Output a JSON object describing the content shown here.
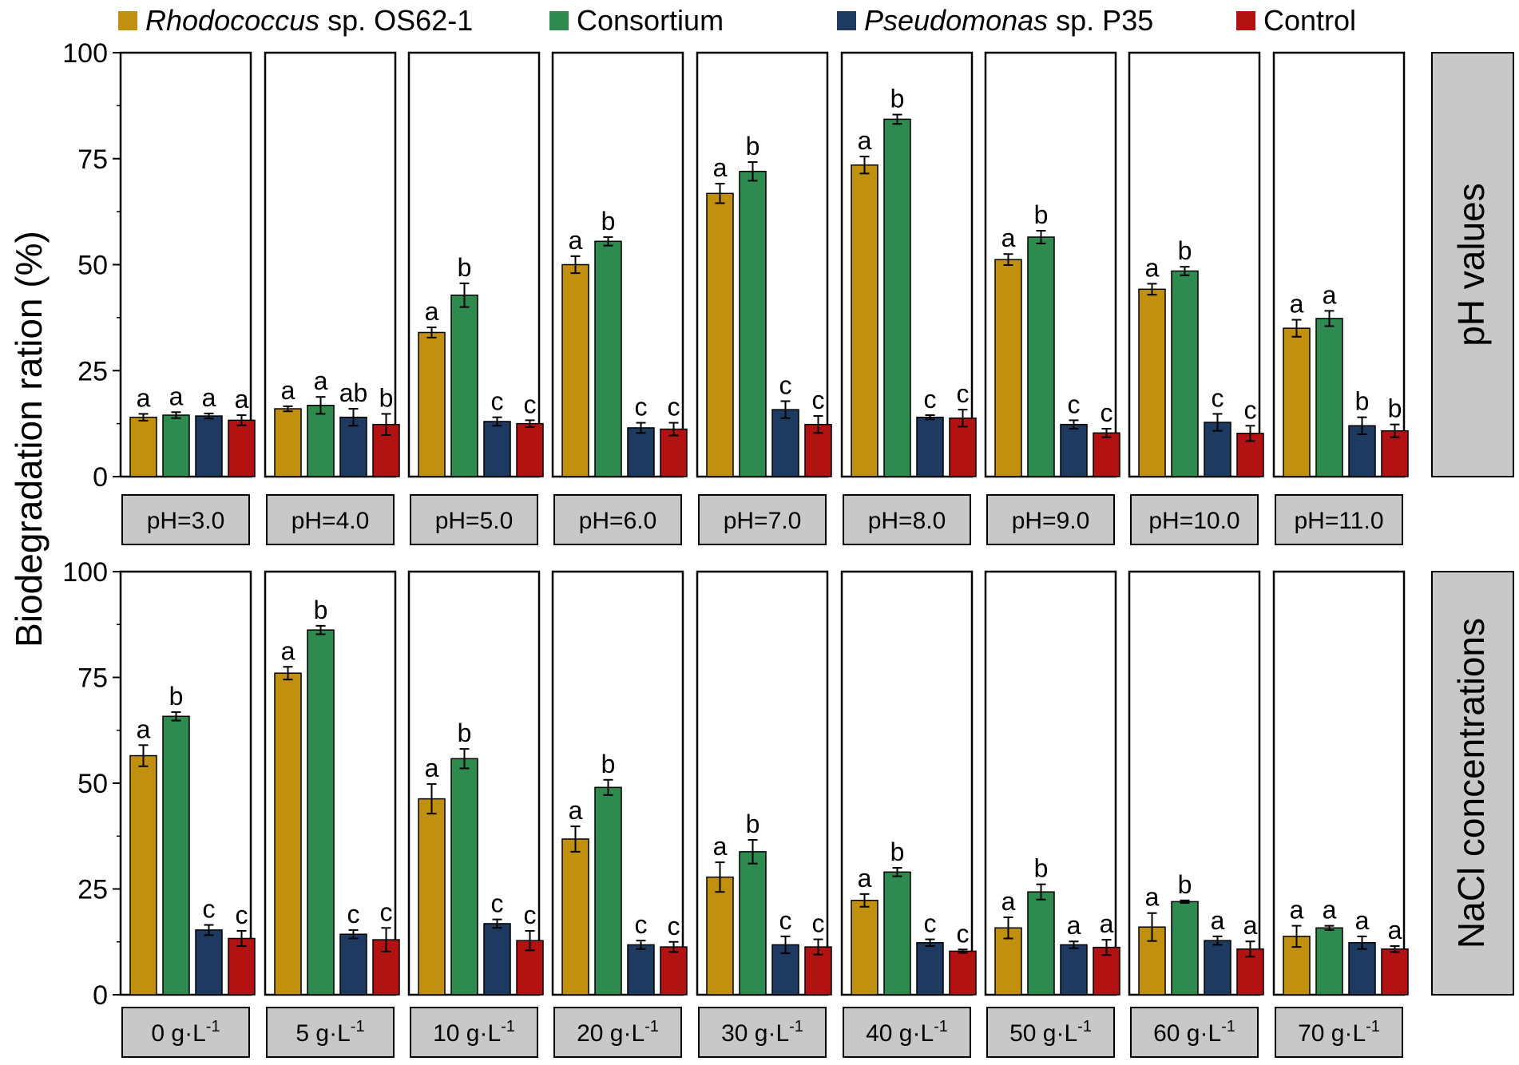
{
  "chart_data": {
    "type": "bar",
    "ylabel": "Biodegradation ration (%)",
    "ylim": [
      0,
      100
    ],
    "yticks": [
      0,
      25,
      50,
      75,
      100
    ],
    "legend": {
      "position": "top",
      "entries": [
        {
          "italic": "Rhodococcus",
          "rest": " sp. OS62-1",
          "color": "#C0900E"
        },
        {
          "italic": "",
          "rest": "Consortium",
          "color": "#2E8A4E"
        },
        {
          "italic": "Pseudomonas",
          "rest": " sp. P35",
          "color": "#1F3A60"
        },
        {
          "italic": "",
          "rest": "Control",
          "color": "#B31212"
        }
      ]
    },
    "series": [
      {
        "name": "Rhodococcus sp. OS62-1",
        "color": "#C0900E"
      },
      {
        "name": "Consortium",
        "color": "#2E8A4E"
      },
      {
        "name": "Pseudomonas sp. P35",
        "color": "#1F3A60"
      },
      {
        "name": "Control",
        "color": "#B31212"
      }
    ],
    "rows": [
      {
        "title": "pH values",
        "panels": [
          {
            "label": "pH=3.0",
            "values": [
              14,
              14.5,
              14.3,
              13.3
            ],
            "errors": [
              0.8,
              0.7,
              0.6,
              1.2
            ],
            "letters": [
              "a",
              "a",
              "a",
              "a"
            ]
          },
          {
            "label": "pH=4.0",
            "values": [
              16,
              16.8,
              14,
              12.3
            ],
            "errors": [
              0.6,
              2.0,
              2.0,
              2.5
            ],
            "letters": [
              "a",
              "a",
              "ab",
              "b"
            ]
          },
          {
            "label": "pH=5.0",
            "values": [
              34,
              42.8,
              13,
              12.5
            ],
            "errors": [
              1.2,
              2.8,
              1.0,
              0.8
            ],
            "letters": [
              "a",
              "b",
              "c",
              "c"
            ]
          },
          {
            "label": "pH=6.0",
            "values": [
              50,
              55.5,
              11.5,
              11.2
            ],
            "errors": [
              2.0,
              1.0,
              1.2,
              1.5
            ],
            "letters": [
              "a",
              "b",
              "c",
              "c"
            ]
          },
          {
            "label": "pH=7.0",
            "values": [
              66.8,
              72,
              15.8,
              12.3
            ],
            "errors": [
              2.3,
              2.2,
              2.0,
              2.0
            ],
            "letters": [
              "a",
              "b",
              "c",
              "c"
            ]
          },
          {
            "label": "pH=8.0",
            "values": [
              73.5,
              84.3,
              14,
              13.8
            ],
            "errors": [
              2.0,
              1.1,
              0.5,
              2.0
            ],
            "letters": [
              "a",
              "b",
              "c",
              "c"
            ]
          },
          {
            "label": "pH=9.0",
            "values": [
              51.2,
              56.5,
              12.3,
              10.3
            ],
            "errors": [
              1.3,
              1.5,
              1.0,
              1.0
            ],
            "letters": [
              "a",
              "b",
              "c",
              "c"
            ]
          },
          {
            "label": "pH=10.0",
            "values": [
              44.2,
              48.5,
              12.8,
              10.2
            ],
            "errors": [
              1.3,
              1.0,
              2.0,
              1.8
            ],
            "letters": [
              "a",
              "b",
              "c",
              "c"
            ]
          },
          {
            "label": "pH=11.0",
            "values": [
              35,
              37.3,
              12,
              10.8
            ],
            "errors": [
              2.0,
              1.8,
              2.0,
              1.5
            ],
            "letters": [
              "a",
              "a",
              "b",
              "b"
            ]
          }
        ]
      },
      {
        "title": "NaCl concentrations",
        "panels": [
          {
            "label_main": "0 g·L",
            "label_sup": "-1",
            "values": [
              56.5,
              65.8,
              15.3,
              13.3
            ],
            "errors": [
              2.5,
              1.0,
              1.2,
              1.8
            ],
            "letters": [
              "a",
              "b",
              "c",
              "c"
            ]
          },
          {
            "label_main": "5 g·L",
            "label_sup": "-1",
            "values": [
              76,
              86.2,
              14.3,
              13
            ],
            "errors": [
              1.5,
              1.0,
              1.0,
              2.8
            ],
            "letters": [
              "a",
              "b",
              "c",
              "c"
            ]
          },
          {
            "label_main": "10 g·L",
            "label_sup": "-1",
            "values": [
              46.3,
              55.8,
              16.8,
              12.8
            ],
            "errors": [
              3.5,
              2.3,
              1.0,
              2.3
            ],
            "letters": [
              "a",
              "b",
              "c",
              "c"
            ]
          },
          {
            "label_main": "20 g·L",
            "label_sup": "-1",
            "values": [
              36.8,
              49,
              11.8,
              11.3
            ],
            "errors": [
              3.0,
              1.8,
              1.0,
              1.2
            ],
            "letters": [
              "a",
              "b",
              "c",
              "c"
            ]
          },
          {
            "label_main": "30 g·L",
            "label_sup": "-1",
            "values": [
              27.8,
              33.8,
              11.8,
              11.3
            ],
            "errors": [
              3.5,
              2.8,
              2.0,
              1.8
            ],
            "letters": [
              "a",
              "b",
              "c",
              "c"
            ]
          },
          {
            "label_main": "40 g·L",
            "label_sup": "-1",
            "values": [
              22.3,
              29,
              12.3,
              10.3
            ],
            "errors": [
              1.5,
              1.0,
              0.8,
              0.4
            ],
            "letters": [
              "a",
              "b",
              "c",
              "c"
            ]
          },
          {
            "label_main": "50 g·L",
            "label_sup": "-1",
            "values": [
              15.8,
              24.3,
              11.8,
              11.2
            ],
            "errors": [
              2.5,
              1.8,
              0.8,
              1.8
            ],
            "letters": [
              "a",
              "b",
              "a",
              "a"
            ]
          },
          {
            "label_main": "60 g·L",
            "label_sup": "-1",
            "values": [
              16,
              22,
              12.8,
              10.8
            ],
            "errors": [
              3.3,
              0.3,
              1.0,
              1.8
            ],
            "letters": [
              "a",
              "b",
              "a",
              "a"
            ]
          },
          {
            "label_main": "70 g·L",
            "label_sup": "-1",
            "values": [
              13.8,
              15.8,
              12.3,
              10.8
            ],
            "errors": [
              2.5,
              0.5,
              1.5,
              0.7
            ],
            "letters": [
              "a",
              "a",
              "a",
              "a"
            ]
          }
        ]
      }
    ]
  }
}
